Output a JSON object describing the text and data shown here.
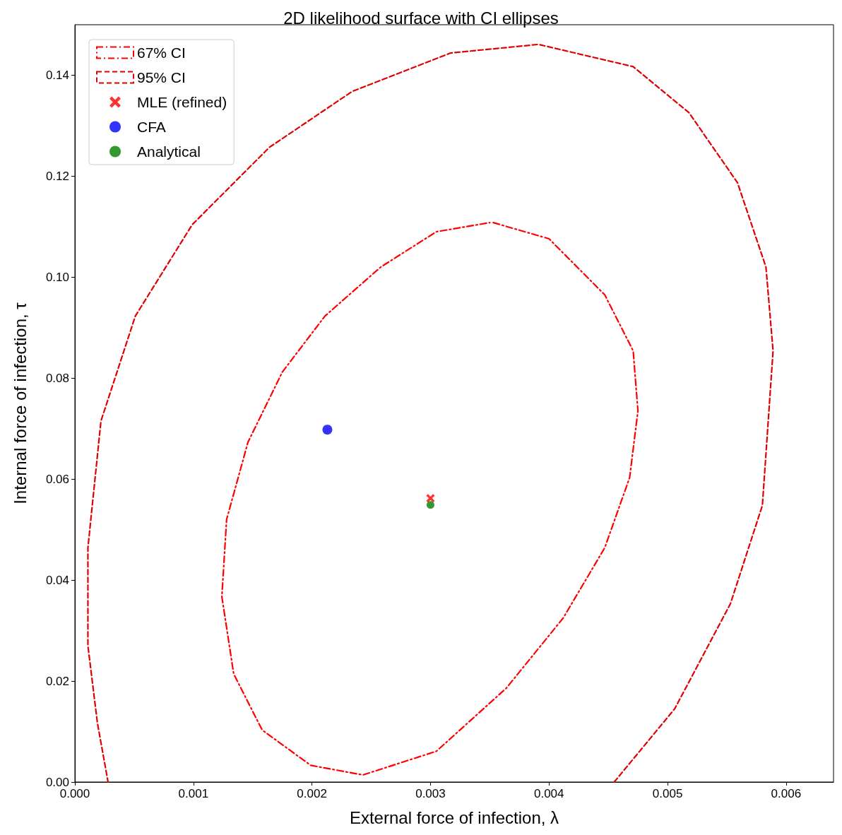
{
  "chart_data": {
    "type": "line",
    "title": "2D likelihood surface with CI ellipses",
    "xlabel": "External force of infection, λ",
    "ylabel": "Internal force of infection, τ",
    "xlim": [
      0,
      0.0064
    ],
    "ylim": [
      0,
      0.15
    ],
    "xticks": [
      {
        "value": 0,
        "label": "0.000"
      },
      {
        "value": 0.001,
        "label": "0.001"
      },
      {
        "value": 0.002,
        "label": "0.002"
      },
      {
        "value": 0.003,
        "label": "0.003"
      },
      {
        "value": 0.004,
        "label": "0.004"
      },
      {
        "value": 0.005,
        "label": "0.005"
      },
      {
        "value": 0.006,
        "label": "0.006"
      }
    ],
    "yticks": [
      {
        "value": 0,
        "label": "0.00"
      },
      {
        "value": 0.02,
        "label": "0.02"
      },
      {
        "value": 0.04,
        "label": "0.04"
      },
      {
        "value": 0.06,
        "label": "0.06"
      },
      {
        "value": 0.08,
        "label": "0.08"
      },
      {
        "value": 0.1,
        "label": "0.10"
      },
      {
        "value": 0.12,
        "label": "0.12"
      },
      {
        "value": 0.14,
        "label": "0.14"
      }
    ],
    "grid": false,
    "legend": "top left",
    "series": [
      {
        "name": "67% CI",
        "line_style": "dashdot",
        "marker": "none",
        "color": "#ff0000",
        "x": [
          0.00353,
          0.004,
          0.00447,
          0.00471,
          0.00475,
          0.00468,
          0.00447,
          0.00412,
          0.00364,
          0.00305,
          0.00243,
          0.00199,
          0.00158,
          0.00134,
          0.00124,
          0.00128,
          0.00146,
          0.00175,
          0.00211,
          0.00258,
          0.00305,
          0.0035
        ],
        "values": [
          0.1108,
          0.1076,
          0.0965,
          0.0854,
          0.0735,
          0.0603,
          0.0464,
          0.0325,
          0.0186,
          0.0061,
          0.0014,
          0.0033,
          0.0103,
          0.0214,
          0.0367,
          0.052,
          0.0673,
          0.0812,
          0.0923,
          0.102,
          0.109,
          0.1108
        ]
      },
      {
        "name": "95% CI",
        "line_style": "dashed",
        "marker": "none",
        "color": "#e00000",
        "x": [
          0.00455,
          0.00506,
          0.00553,
          0.0058,
          0.00589,
          0.00583,
          0.00559,
          0.00518,
          0.00471,
          0.00391,
          0.00317,
          0.00234,
          0.00164,
          0.00099,
          0.00051,
          0.00022,
          0.00011,
          0.00011,
          0.00019,
          0.00028
        ],
        "values": [
          0,
          0.0145,
          0.0353,
          0.0548,
          0.0854,
          0.102,
          0.1187,
          0.1326,
          0.1417,
          0.1461,
          0.1444,
          0.1368,
          0.1257,
          0.1104,
          0.0923,
          0.0715,
          0.0464,
          0.027,
          0.0117,
          0
        ]
      },
      {
        "name": "MLE (refined)",
        "type": "scatter",
        "marker": "cross",
        "color": "#ff0000",
        "x": [
          0.003
        ],
        "values": [
          0.0562
        ]
      },
      {
        "name": "CFA",
        "type": "scatter",
        "marker": "circle",
        "color": "#0000ff",
        "x": [
          0.00213
        ],
        "values": [
          0.0698
        ]
      },
      {
        "name": "Analytical",
        "type": "scatter",
        "marker": "circle",
        "color": "#008000",
        "x": [
          0.003
        ],
        "values": [
          0.0549
        ]
      }
    ]
  }
}
